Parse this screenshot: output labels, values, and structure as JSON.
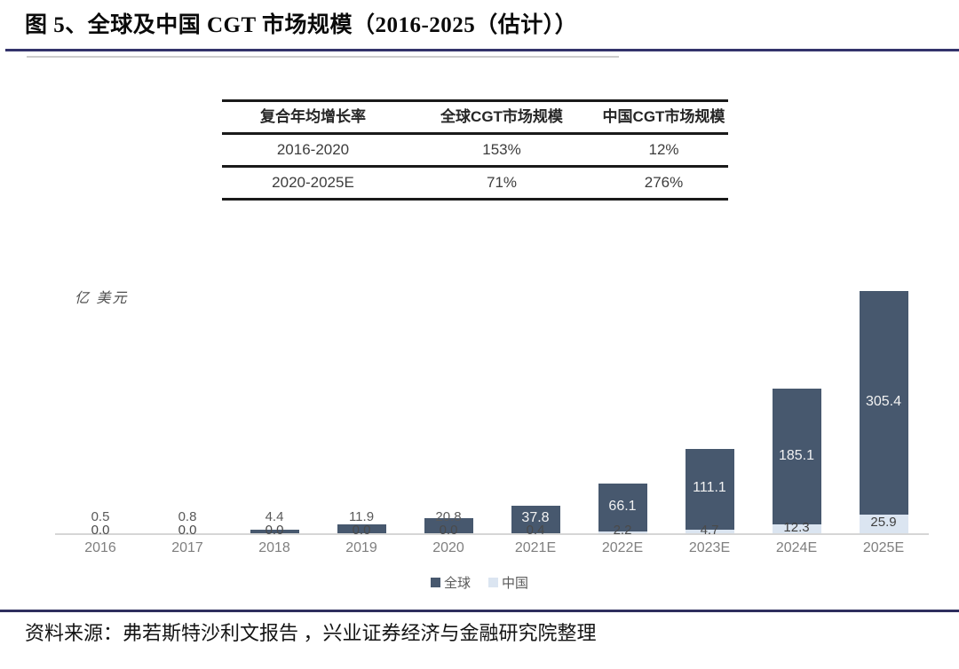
{
  "title": "图 5、全球及中国 CGT 市场规模（2016-2025（估计））",
  "table": {
    "headers": [
      "复合年均增长率",
      "全球CGT市场规模",
      "中国CGT市场规模"
    ],
    "rows": [
      [
        "2016-2020",
        "153%",
        "12%"
      ],
      [
        "2020-2025E",
        "71%",
        "276%"
      ]
    ]
  },
  "chart_data": {
    "type": "bar",
    "stacked": true,
    "title": "",
    "unit_label": "亿 美元",
    "xlabel": "",
    "ylabel": "亿美元",
    "ylim": [
      0,
      340
    ],
    "grid": false,
    "legend_position": "bottom",
    "categories": [
      "2016",
      "2017",
      "2018",
      "2019",
      "2020",
      "2021E",
      "2022E",
      "2023E",
      "2024E",
      "2025E"
    ],
    "series": [
      {
        "name": "全球",
        "color": "#47586e",
        "values": [
          0.5,
          0.8,
          4.4,
          11.9,
          20.8,
          37.8,
          66.1,
          111.1,
          185.1,
          305.4
        ]
      },
      {
        "name": "中国",
        "color": "#dbe5f1",
        "values": [
          0.0,
          0.0,
          0.0,
          0.0,
          0.0,
          0.4,
          2.2,
          4.7,
          12.3,
          25.9
        ]
      }
    ]
  },
  "footer": {
    "source": "资料来源：弗若斯特沙利文报告 ，兴业证券经济与金融研究院整理"
  },
  "colors": {
    "global_bar": "#47586e",
    "china_bar": "#dbe5f1",
    "rule_navy": "#33336b",
    "rule_gray": "#cccccc",
    "footer_rule": "#2e2e5e",
    "axis_line": "#d6d6d6",
    "tick_label": "#7f7f7f",
    "value_label": "#595959",
    "value_label_light": "#f2f2f2"
  }
}
